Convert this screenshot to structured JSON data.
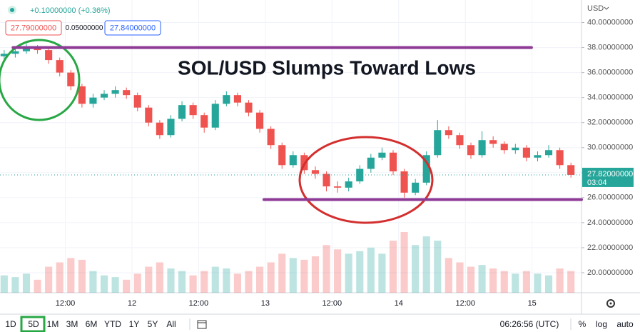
{
  "header": {
    "change": "+0.10000000 (+0.36%)",
    "bid": "27.79000000",
    "spread": "0.05000000",
    "ask": "27.84000000",
    "currency": "USD"
  },
  "chart_data": {
    "type": "candlestick",
    "title": "SOL/USD Slumps Toward Lows",
    "x": [
      1,
      3,
      5,
      7,
      9,
      11,
      13,
      15,
      17,
      19,
      21,
      23,
      25,
      27,
      29,
      31,
      33,
      35,
      37,
      39,
      41,
      43,
      45,
      47,
      49,
      51,
      53,
      55,
      57,
      59,
      61,
      63,
      65,
      67,
      69,
      71,
      73,
      75,
      77,
      79,
      81,
      83,
      85,
      87,
      89,
      91,
      93,
      95,
      97,
      99,
      101,
      103
    ],
    "open": [
      37.3,
      37.5,
      37.7,
      38.0,
      37.8,
      37.0,
      36.0,
      34.9,
      33.5,
      34.0,
      34.3,
      34.6,
      34.2,
      33.2,
      32.0,
      31.0,
      32.3,
      33.4,
      32.6,
      31.6,
      33.5,
      34.2,
      33.6,
      32.8,
      31.5,
      30.2,
      28.6,
      29.4,
      28.2,
      27.9,
      26.9,
      26.8,
      27.3,
      28.3,
      29.2,
      29.6,
      28.1,
      26.4,
      27.2,
      29.4,
      31.4,
      31.0,
      30.2,
      29.4,
      30.6,
      30.3,
      29.8,
      30.0,
      29.2,
      29.4,
      29.8,
      28.6
    ],
    "high": [
      37.8,
      38.0,
      38.3,
      38.2,
      38.0,
      37.2,
      36.2,
      35.1,
      34.3,
      34.6,
      34.9,
      34.8,
      34.4,
      33.4,
      32.2,
      32.6,
      33.7,
      33.6,
      32.8,
      33.8,
      34.5,
      34.4,
      33.8,
      33.0,
      31.7,
      30.4,
      29.7,
      29.6,
      28.5,
      28.1,
      27.3,
      27.6,
      28.6,
      29.5,
      30.0,
      29.8,
      28.3,
      27.5,
      29.7,
      32.2,
      31.7,
      31.2,
      30.4,
      31.3,
      30.9,
      30.5,
      30.3,
      30.2,
      29.7,
      30.2,
      30.0,
      28.8
    ],
    "low": [
      37.0,
      37.2,
      37.5,
      37.5,
      36.7,
      35.7,
      34.6,
      33.2,
      33.2,
      33.8,
      34.0,
      33.9,
      32.9,
      31.7,
      30.7,
      30.8,
      32.1,
      32.3,
      31.2,
      31.4,
      33.3,
      33.3,
      32.5,
      31.2,
      29.9,
      28.3,
      28.4,
      27.9,
      27.5,
      26.5,
      26.4,
      26.5,
      27.1,
      28.0,
      29.0,
      27.8,
      26.0,
      26.2,
      27.0,
      29.2,
      30.7,
      29.9,
      29.1,
      29.2,
      30.0,
      29.5,
      29.5,
      28.9,
      28.9,
      29.2,
      28.3,
      27.6
    ],
    "close": [
      37.5,
      37.7,
      38.0,
      37.8,
      37.0,
      36.0,
      34.9,
      33.5,
      34.0,
      34.3,
      34.6,
      34.2,
      33.2,
      32.0,
      31.0,
      32.3,
      33.4,
      32.6,
      31.6,
      33.5,
      34.2,
      33.6,
      32.8,
      31.5,
      30.2,
      28.6,
      29.4,
      28.2,
      27.9,
      26.9,
      26.8,
      27.3,
      28.3,
      29.2,
      29.6,
      28.1,
      26.4,
      27.2,
      29.4,
      31.4,
      31.0,
      30.2,
      29.4,
      30.6,
      30.3,
      29.8,
      30.0,
      29.2,
      29.4,
      29.8,
      28.6,
      27.82
    ],
    "volume": [
      20,
      18,
      22,
      15,
      30,
      35,
      40,
      38,
      25,
      20,
      18,
      15,
      22,
      30,
      35,
      28,
      25,
      20,
      25,
      30,
      28,
      22,
      25,
      30,
      35,
      45,
      40,
      38,
      42,
      55,
      50,
      45,
      48,
      52,
      45,
      60,
      70,
      55,
      65,
      60,
      40,
      35,
      30,
      32,
      28,
      25,
      22,
      25,
      22,
      20,
      28,
      25
    ],
    "up_color": "#26a69a",
    "down_color": "#ef5350",
    "xlim": [
      0.25,
      104.9
    ],
    "ylim": [
      18.4,
      41.8
    ],
    "xticks": [
      {
        "value": 12,
        "label": "12:00"
      },
      {
        "value": 24,
        "label": "12"
      },
      {
        "value": 36,
        "label": "12:00"
      },
      {
        "value": 48,
        "label": "13"
      },
      {
        "value": 60,
        "label": "12:00"
      },
      {
        "value": 72,
        "label": "14"
      },
      {
        "value": 84,
        "label": "12:00"
      },
      {
        "value": 96,
        "label": "15"
      }
    ],
    "yticks": [
      {
        "value": 20,
        "label": "20.00000000"
      },
      {
        "value": 22,
        "label": "22.00000000"
      },
      {
        "value": 24,
        "label": "24.00000000"
      },
      {
        "value": 26,
        "label": "26.00000000"
      },
      {
        "value": 28,
        "label": "28.00000000"
      },
      {
        "value": 30,
        "label": "30.00000000"
      },
      {
        "value": 32,
        "label": "32.00000000"
      },
      {
        "value": 34,
        "label": "34.00000000"
      },
      {
        "value": 36,
        "label": "36.00000000"
      },
      {
        "value": 38,
        "label": "38.00000000"
      },
      {
        "value": 40,
        "label": "40.00000000"
      }
    ],
    "levels": [
      {
        "value": 38,
        "x": [
          2.6,
          95.9
        ],
        "color": "#8e3b96"
      },
      {
        "value": 25.85,
        "x": [
          47.75,
          104.9
        ],
        "color": "#8e3b96"
      }
    ],
    "price_label": {
      "value": 27.82,
      "label": "27.82000000",
      "countdown": "03:04"
    }
  },
  "toolbar": {
    "ranges": [
      "1D",
      "5D",
      "1M",
      "3M",
      "6M",
      "YTD",
      "1Y",
      "5Y",
      "All"
    ],
    "time": "06:26:56 (UTC)",
    "options": [
      "%",
      "log",
      "auto"
    ]
  }
}
